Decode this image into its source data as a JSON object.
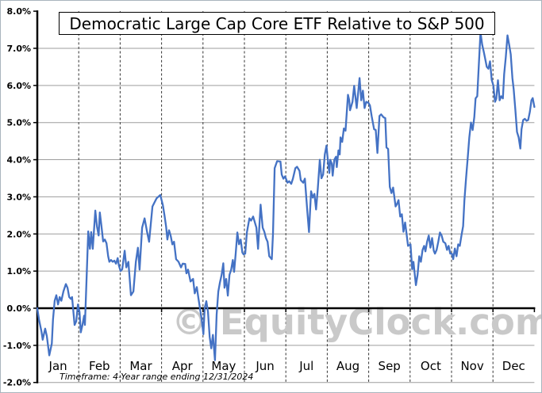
{
  "window": {
    "background_color": "#ffffff",
    "border_color": "#a9b4bd"
  },
  "chart": {
    "title": "Democratic Large Cap Core ETF Relative to S&P 500",
    "watermark": "© EquityClock.com",
    "timeframe_note": "Timeframe: 4-Year range ending 12/31/2024",
    "line_color": "#4472c4",
    "gridline_color": "#9d9d9d",
    "dashed_gridline_color": "#333333",
    "axis_color": "#000000"
  },
  "chart_data": {
    "type": "line",
    "title": "Democratic Large Cap Core ETF Relative to S&P 500",
    "xlabel": "",
    "ylabel": "",
    "x_unit": "month position (0 = start of Jan, 12 = end of Dec)",
    "y_unit": "percent relative performance",
    "ylim": [
      -2,
      8
    ],
    "categories": [
      "Jan",
      "Feb",
      "Mar",
      "Apr",
      "May",
      "Jun",
      "Jul",
      "Aug",
      "Sep",
      "Oct",
      "Nov",
      "Dec"
    ],
    "y_ticks": [
      {
        "label": "8.0%",
        "value": 8
      },
      {
        "label": "7.0%",
        "value": 7
      },
      {
        "label": "6.0%",
        "value": 6
      },
      {
        "label": "5.0%",
        "value": 5
      },
      {
        "label": "4.0%",
        "value": 4
      },
      {
        "label": "3.0%",
        "value": 3
      },
      {
        "label": "2.0%",
        "value": 2
      },
      {
        "label": "1.0%",
        "value": 1
      },
      {
        "label": "0.0%",
        "value": 0
      },
      {
        "label": "-1.0%",
        "value": -1
      },
      {
        "label": "-2.0%",
        "value": -2
      }
    ],
    "grid": {
      "horizontal": "solid gray at each 1%",
      "vertical": "black dashed at month boundaries",
      "zero_axis": "thick black"
    },
    "legend": "none",
    "series": [
      {
        "name": "Democratic Large Cap Core ETF Relative to S&P 500",
        "color": "#4472c4",
        "points": [
          [
            0.0,
            0.0
          ],
          [
            0.04,
            -0.3
          ],
          [
            0.1,
            -0.62
          ],
          [
            0.13,
            -0.85
          ],
          [
            0.19,
            -0.55
          ],
          [
            0.23,
            -0.75
          ],
          [
            0.29,
            -1.27
          ],
          [
            0.35,
            -0.95
          ],
          [
            0.38,
            -0.3
          ],
          [
            0.42,
            0.2
          ],
          [
            0.46,
            0.35
          ],
          [
            0.5,
            0.1
          ],
          [
            0.54,
            0.3
          ],
          [
            0.58,
            0.2
          ],
          [
            0.63,
            0.45
          ],
          [
            0.69,
            0.65
          ],
          [
            0.73,
            0.55
          ],
          [
            0.77,
            0.3
          ],
          [
            0.81,
            0.25
          ],
          [
            0.84,
            0.3
          ],
          [
            0.9,
            -0.45
          ],
          [
            0.94,
            -0.35
          ],
          [
            0.98,
            0.1
          ],
          [
            1.02,
            -0.1
          ],
          [
            1.05,
            -0.65
          ],
          [
            1.09,
            -0.45
          ],
          [
            1.13,
            -0.2
          ],
          [
            1.15,
            -0.45
          ],
          [
            1.19,
            0.8
          ],
          [
            1.23,
            2.07
          ],
          [
            1.27,
            1.6
          ],
          [
            1.3,
            2.05
          ],
          [
            1.34,
            1.6
          ],
          [
            1.4,
            2.63
          ],
          [
            1.44,
            2.2
          ],
          [
            1.48,
            1.96
          ],
          [
            1.51,
            2.58
          ],
          [
            1.55,
            2.2
          ],
          [
            1.59,
            1.8
          ],
          [
            1.63,
            1.85
          ],
          [
            1.67,
            1.75
          ],
          [
            1.71,
            1.4
          ],
          [
            1.74,
            1.25
          ],
          [
            1.78,
            1.3
          ],
          [
            1.82,
            1.25
          ],
          [
            1.86,
            1.28
          ],
          [
            1.9,
            1.2
          ],
          [
            1.94,
            1.35
          ],
          [
            1.97,
            1.15
          ],
          [
            2.01,
            1.0
          ],
          [
            2.05,
            1.05
          ],
          [
            2.11,
            1.55
          ],
          [
            2.15,
            1.1
          ],
          [
            2.2,
            1.25
          ],
          [
            2.26,
            0.35
          ],
          [
            2.32,
            0.45
          ],
          [
            2.38,
            1.25
          ],
          [
            2.43,
            1.63
          ],
          [
            2.47,
            1.04
          ],
          [
            2.53,
            2.17
          ],
          [
            2.59,
            2.42
          ],
          [
            2.65,
            2.06
          ],
          [
            2.7,
            1.79
          ],
          [
            2.78,
            2.74
          ],
          [
            2.88,
            2.96
          ],
          [
            2.97,
            3.05
          ],
          [
            3.03,
            2.78
          ],
          [
            3.07,
            2.5
          ],
          [
            3.11,
            2.2
          ],
          [
            3.14,
            1.85
          ],
          [
            3.18,
            2.1
          ],
          [
            3.22,
            1.95
          ],
          [
            3.26,
            1.72
          ],
          [
            3.3,
            1.79
          ],
          [
            3.35,
            1.32
          ],
          [
            3.41,
            1.25
          ],
          [
            3.47,
            1.1
          ],
          [
            3.51,
            1.2
          ],
          [
            3.57,
            1.19
          ],
          [
            3.6,
            0.94
          ],
          [
            3.64,
            1.04
          ],
          [
            3.7,
            0.72
          ],
          [
            3.76,
            0.79
          ],
          [
            3.8,
            0.4
          ],
          [
            3.85,
            0.57
          ],
          [
            3.89,
            0.26
          ],
          [
            3.93,
            -0.02
          ],
          [
            3.97,
            -0.3
          ],
          [
            4.01,
            -0.7
          ],
          [
            4.04,
            0.0
          ],
          [
            4.08,
            0.19
          ],
          [
            4.12,
            -0.1
          ],
          [
            4.16,
            -0.77
          ],
          [
            4.2,
            -1.08
          ],
          [
            4.24,
            -0.72
          ],
          [
            4.29,
            -1.4
          ],
          [
            4.33,
            -0.17
          ],
          [
            4.37,
            0.45
          ],
          [
            4.41,
            0.7
          ],
          [
            4.45,
            0.9
          ],
          [
            4.49,
            1.21
          ],
          [
            4.52,
            0.55
          ],
          [
            4.56,
            0.79
          ],
          [
            4.6,
            0.34
          ],
          [
            4.64,
            0.9
          ],
          [
            4.68,
            1.04
          ],
          [
            4.72,
            1.3
          ],
          [
            4.75,
            0.98
          ],
          [
            4.79,
            1.47
          ],
          [
            4.83,
            2.04
          ],
          [
            4.87,
            1.72
          ],
          [
            4.91,
            1.85
          ],
          [
            4.95,
            1.5
          ],
          [
            4.98,
            1.45
          ],
          [
            5.02,
            1.47
          ],
          [
            5.06,
            2.04
          ],
          [
            5.12,
            2.42
          ],
          [
            5.16,
            2.36
          ],
          [
            5.21,
            2.47
          ],
          [
            5.29,
            2.17
          ],
          [
            5.33,
            1.6
          ],
          [
            5.39,
            2.79
          ],
          [
            5.44,
            2.17
          ],
          [
            5.48,
            2.06
          ],
          [
            5.52,
            1.89
          ],
          [
            5.56,
            1.79
          ],
          [
            5.6,
            1.4
          ],
          [
            5.66,
            1.32
          ],
          [
            5.69,
            2.0
          ],
          [
            5.73,
            3.77
          ],
          [
            5.79,
            3.96
          ],
          [
            5.87,
            3.95
          ],
          [
            5.9,
            3.6
          ],
          [
            5.94,
            3.49
          ],
          [
            5.98,
            3.55
          ],
          [
            6.04,
            3.38
          ],
          [
            6.08,
            3.42
          ],
          [
            6.13,
            3.35
          ],
          [
            6.17,
            3.49
          ],
          [
            6.23,
            3.77
          ],
          [
            6.27,
            3.81
          ],
          [
            6.33,
            3.7
          ],
          [
            6.36,
            3.45
          ],
          [
            6.42,
            3.38
          ],
          [
            6.46,
            3.49
          ],
          [
            6.52,
            2.6
          ],
          [
            6.56,
            2.05
          ],
          [
            6.61,
            3.15
          ],
          [
            6.65,
            2.98
          ],
          [
            6.69,
            3.08
          ],
          [
            6.73,
            2.66
          ],
          [
            6.77,
            3.2
          ],
          [
            6.82,
            4.0
          ],
          [
            6.86,
            3.5
          ],
          [
            6.9,
            3.6
          ],
          [
            6.94,
            4.14
          ],
          [
            6.98,
            4.38
          ],
          [
            7.02,
            3.93
          ],
          [
            7.05,
            3.64
          ],
          [
            7.07,
            4.0
          ],
          [
            7.11,
            3.89
          ],
          [
            7.13,
            3.57
          ],
          [
            7.17,
            4.0
          ],
          [
            7.21,
            4.08
          ],
          [
            7.23,
            3.8
          ],
          [
            7.27,
            4.25
          ],
          [
            7.3,
            4.14
          ],
          [
            7.32,
            4.6
          ],
          [
            7.36,
            4.48
          ],
          [
            7.4,
            4.84
          ],
          [
            7.44,
            4.78
          ],
          [
            7.5,
            5.75
          ],
          [
            7.53,
            5.6
          ],
          [
            7.55,
            5.33
          ],
          [
            7.61,
            5.56
          ],
          [
            7.65,
            5.99
          ],
          [
            7.71,
            5.39
          ],
          [
            7.78,
            6.2
          ],
          [
            7.82,
            5.6
          ],
          [
            7.86,
            5.86
          ],
          [
            7.9,
            5.39
          ],
          [
            7.94,
            5.56
          ],
          [
            7.99,
            5.54
          ],
          [
            8.03,
            5.46
          ],
          [
            8.07,
            5.18
          ],
          [
            8.13,
            4.82
          ],
          [
            8.17,
            4.8
          ],
          [
            8.21,
            4.18
          ],
          [
            8.26,
            5.18
          ],
          [
            8.3,
            5.22
          ],
          [
            8.36,
            5.14
          ],
          [
            8.4,
            5.12
          ],
          [
            8.43,
            4.33
          ],
          [
            8.47,
            4.29
          ],
          [
            8.51,
            3.27
          ],
          [
            8.55,
            3.1
          ],
          [
            8.59,
            3.25
          ],
          [
            8.65,
            2.74
          ],
          [
            8.68,
            2.8
          ],
          [
            8.72,
            2.91
          ],
          [
            8.76,
            2.47
          ],
          [
            8.8,
            2.53
          ],
          [
            8.84,
            2.06
          ],
          [
            8.88,
            2.31
          ],
          [
            8.91,
            2.04
          ],
          [
            8.95,
            1.68
          ],
          [
            9.01,
            1.72
          ],
          [
            9.05,
            1.05
          ],
          [
            9.08,
            1.25
          ],
          [
            9.14,
            0.62
          ],
          [
            9.18,
            0.9
          ],
          [
            9.22,
            1.4
          ],
          [
            9.26,
            1.25
          ],
          [
            9.3,
            1.57
          ],
          [
            9.34,
            1.68
          ],
          [
            9.37,
            1.53
          ],
          [
            9.41,
            1.79
          ],
          [
            9.45,
            1.96
          ],
          [
            9.49,
            1.63
          ],
          [
            9.53,
            1.89
          ],
          [
            9.57,
            1.55
          ],
          [
            9.6,
            1.47
          ],
          [
            9.64,
            1.57
          ],
          [
            9.68,
            1.79
          ],
          [
            9.72,
            2.04
          ],
          [
            9.76,
            1.96
          ],
          [
            9.8,
            1.79
          ],
          [
            9.85,
            1.75
          ],
          [
            9.89,
            1.57
          ],
          [
            9.93,
            1.68
          ],
          [
            9.97,
            1.47
          ],
          [
            10.01,
            1.47
          ],
          [
            10.04,
            1.32
          ],
          [
            10.08,
            1.61
          ],
          [
            10.12,
            1.4
          ],
          [
            10.16,
            1.72
          ],
          [
            10.2,
            1.68
          ],
          [
            10.24,
            1.96
          ],
          [
            10.28,
            2.21
          ],
          [
            10.31,
            2.9
          ],
          [
            10.35,
            3.5
          ],
          [
            10.39,
            4.05
          ],
          [
            10.43,
            4.6
          ],
          [
            10.47,
            5.0
          ],
          [
            10.51,
            4.8
          ],
          [
            10.55,
            5.15
          ],
          [
            10.58,
            5.65
          ],
          [
            10.62,
            5.71
          ],
          [
            10.66,
            6.6
          ],
          [
            10.7,
            7.43
          ],
          [
            10.74,
            7.1
          ],
          [
            10.78,
            6.9
          ],
          [
            10.81,
            6.73
          ],
          [
            10.85,
            6.5
          ],
          [
            10.89,
            6.45
          ],
          [
            10.93,
            6.65
          ],
          [
            10.97,
            6.15
          ],
          [
            11.01,
            6.0
          ],
          [
            11.05,
            5.56
          ],
          [
            11.08,
            5.64
          ],
          [
            11.12,
            6.14
          ],
          [
            11.16,
            5.6
          ],
          [
            11.2,
            5.71
          ],
          [
            11.24,
            5.65
          ],
          [
            11.27,
            6.3
          ],
          [
            11.31,
            6.77
          ],
          [
            11.35,
            7.35
          ],
          [
            11.39,
            7.1
          ],
          [
            11.43,
            6.84
          ],
          [
            11.47,
            6.2
          ],
          [
            11.5,
            5.9
          ],
          [
            11.54,
            5.35
          ],
          [
            11.58,
            4.75
          ],
          [
            11.62,
            4.6
          ],
          [
            11.66,
            4.3
          ],
          [
            11.69,
            4.82
          ],
          [
            11.73,
            5.07
          ],
          [
            11.77,
            5.1
          ],
          [
            11.81,
            5.05
          ],
          [
            11.85,
            5.07
          ],
          [
            11.89,
            5.29
          ],
          [
            11.93,
            5.6
          ],
          [
            11.96,
            5.66
          ],
          [
            12.0,
            5.42
          ]
        ]
      }
    ]
  }
}
